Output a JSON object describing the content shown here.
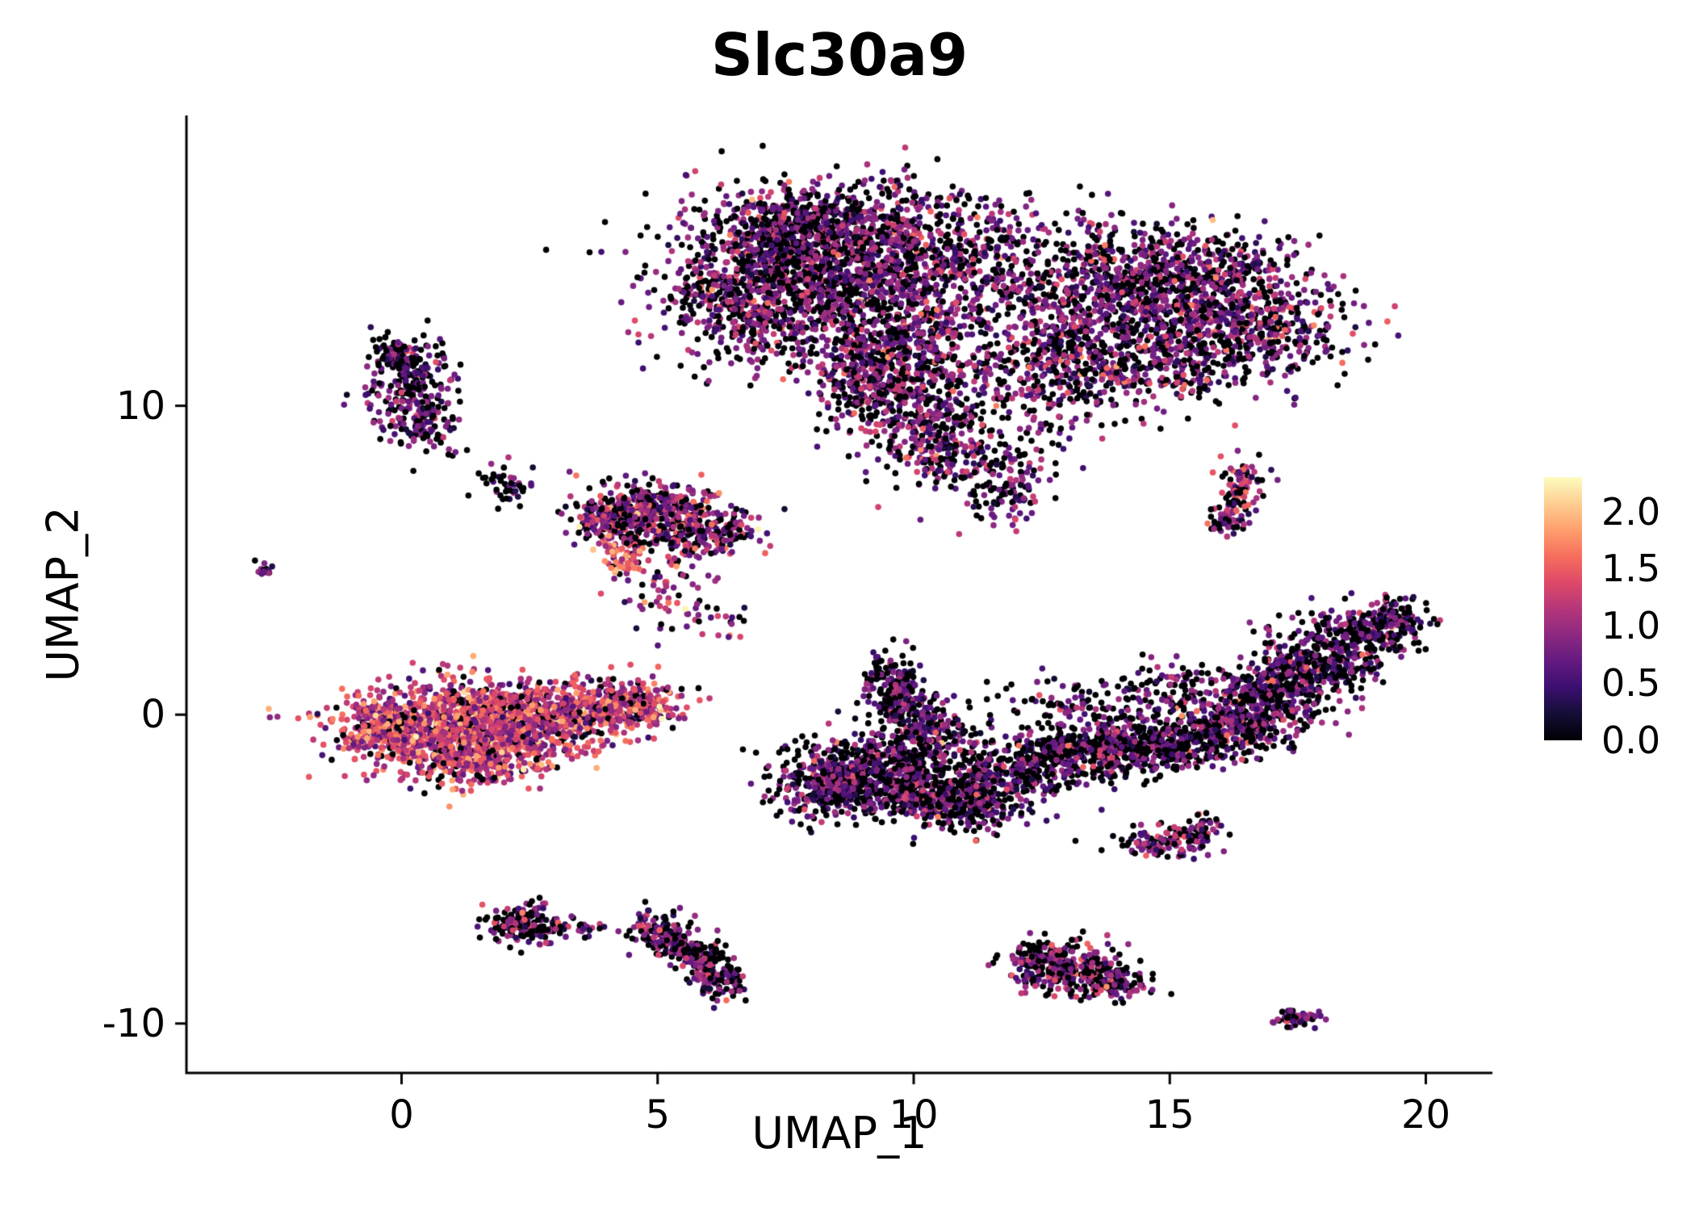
{
  "chart_data": {
    "type": "scatter",
    "title": "Slc30a9",
    "xlabel": "UMAP_1",
    "ylabel": "UMAP_2",
    "grid": false,
    "x_axis": {
      "range": [
        -4.2,
        21.3
      ],
      "ticks": [
        0,
        5,
        10,
        15,
        20
      ],
      "tick_labels": [
        "0",
        "5",
        "10",
        "15",
        "20"
      ]
    },
    "y_axis": {
      "range": [
        -11.6,
        19.4
      ],
      "ticks": [
        -10,
        0,
        10
      ],
      "tick_labels": [
        "-10",
        "0",
        "10"
      ]
    },
    "legend": {
      "position": "right",
      "range": [
        0,
        2.3
      ],
      "tick_values": [
        0,
        0.5,
        1,
        1.5,
        2
      ],
      "tick_labels": [
        "0.0",
        "0.5",
        "1.0",
        "1.5",
        "2.0"
      ]
    },
    "colormap": {
      "name": "magma",
      "stops": [
        [
          0.0,
          "#000004"
        ],
        [
          0.1,
          "#140e36"
        ],
        [
          0.2,
          "#3b0f70"
        ],
        [
          0.3,
          "#641a80"
        ],
        [
          0.4,
          "#8c2981"
        ],
        [
          0.5,
          "#b5367a"
        ],
        [
          0.6,
          "#de4968"
        ],
        [
          0.7,
          "#f66e5c"
        ],
        [
          0.8,
          "#fe9f6d"
        ],
        [
          0.9,
          "#fece91"
        ],
        [
          1.0,
          "#fcfdbf"
        ]
      ]
    },
    "point_radius": 3.8,
    "seed": 12345,
    "clusters": [
      {
        "name": "top-large-cluster",
        "expr": {
          "p0": 0.38,
          "mean": 0.85,
          "sd": 0.35
        },
        "blobs": [
          [
            8.2,
            14.6,
            1.5,
            1.2,
            1400
          ],
          [
            6.9,
            13.2,
            0.8,
            0.9,
            350
          ],
          [
            9.6,
            12.3,
            1.0,
            1.1,
            450
          ],
          [
            10.6,
            14.9,
            1.1,
            0.9,
            300
          ],
          [
            9.0,
            16.2,
            1.2,
            0.5,
            200
          ],
          [
            7.2,
            15.6,
            0.7,
            0.5,
            150
          ],
          [
            9.9,
            10.0,
            0.7,
            1.0,
            300
          ],
          [
            9.2,
            11.0,
            0.6,
            0.7,
            200
          ],
          [
            10.6,
            8.6,
            0.5,
            0.7,
            150
          ],
          [
            11.8,
            7.4,
            0.4,
            0.8,
            130
          ],
          [
            12.4,
            10.6,
            1.0,
            1.1,
            180
          ],
          [
            13.8,
            13.9,
            1.2,
            1.0,
            650
          ],
          [
            15.7,
            13.1,
            1.1,
            0.9,
            480
          ],
          [
            16.9,
            12.3,
            0.8,
            0.7,
            240
          ],
          [
            13.1,
            11.6,
            0.9,
            0.8,
            280
          ],
          [
            14.9,
            11.2,
            0.9,
            0.7,
            230
          ],
          [
            15.9,
            14.6,
            0.9,
            0.5,
            180
          ]
        ]
      },
      {
        "name": "upper-left-cluster",
        "expr": {
          "p0": 0.42,
          "mean": 0.75,
          "sd": 0.3
        },
        "blobs": [
          [
            0.15,
            10.6,
            0.42,
            0.8,
            240
          ],
          [
            0.45,
            9.4,
            0.28,
            0.4,
            70
          ],
          [
            -0.1,
            11.6,
            0.3,
            0.3,
            60
          ]
        ]
      },
      {
        "name": "far-left-tiny-cluster",
        "expr": {
          "p0": 0.35,
          "mean": 0.8,
          "sd": 0.3
        },
        "blobs": [
          [
            -2.65,
            4.7,
            0.1,
            0.15,
            14
          ]
        ]
      },
      {
        "name": "small-sparse-cluster",
        "expr": {
          "p0": 0.65,
          "mean": 0.6,
          "sd": 0.25
        },
        "blobs": [
          [
            2.05,
            7.5,
            0.28,
            0.28,
            45
          ]
        ]
      },
      {
        "name": "mid-left-cluster",
        "expr": {
          "p0": 0.3,
          "mean": 1.0,
          "sd": 0.4
        },
        "blobs": [
          [
            4.8,
            6.6,
            0.65,
            0.45,
            420
          ],
          [
            5.9,
            5.9,
            0.55,
            0.4,
            220
          ],
          [
            4.1,
            6.1,
            0.3,
            0.35,
            100
          ],
          [
            5.2,
            4.0,
            0.45,
            0.6,
            60
          ],
          [
            6.2,
            3.1,
            0.25,
            0.35,
            20
          ]
        ]
      },
      {
        "name": "mid-left-bright-spot",
        "expr": {
          "p0": 0.1,
          "mean": 1.5,
          "sd": 0.35
        },
        "blobs": [
          [
            4.35,
            5.05,
            0.2,
            0.3,
            60
          ]
        ]
      },
      {
        "name": "left-warm-cluster",
        "expr": {
          "p0": 0.12,
          "mean": 1.25,
          "sd": 0.4
        },
        "blobs": [
          [
            0.7,
            -0.4,
            1.0,
            0.7,
            850
          ],
          [
            2.4,
            -0.15,
            0.95,
            0.55,
            650
          ],
          [
            3.9,
            0.25,
            0.75,
            0.4,
            320
          ],
          [
            1.5,
            -1.4,
            0.8,
            0.5,
            280
          ],
          [
            -0.35,
            -0.5,
            0.35,
            0.45,
            140
          ],
          [
            4.7,
            0.45,
            0.35,
            0.3,
            90
          ]
        ]
      },
      {
        "name": "center-right-cluster",
        "expr": {
          "p0": 0.45,
          "mean": 0.75,
          "sd": 0.35
        },
        "blobs": [
          [
            9.6,
            1.1,
            0.3,
            0.5,
            110
          ],
          [
            9.9,
            0.2,
            0.35,
            0.5,
            130
          ],
          [
            10.3,
            -0.7,
            0.5,
            0.5,
            180
          ],
          [
            9.0,
            -1.8,
            0.75,
            0.55,
            400
          ],
          [
            8.3,
            -2.4,
            0.5,
            0.45,
            220
          ],
          [
            10.1,
            -2.4,
            0.65,
            0.5,
            320
          ],
          [
            11.0,
            -2.9,
            0.55,
            0.45,
            250
          ],
          [
            11.9,
            -1.9,
            0.65,
            0.45,
            230
          ],
          [
            12.9,
            -1.3,
            0.75,
            0.45,
            270
          ],
          [
            14.1,
            -1.1,
            0.75,
            0.45,
            270
          ],
          [
            15.3,
            -0.8,
            0.75,
            0.45,
            260
          ],
          [
            16.3,
            -0.3,
            0.65,
            0.45,
            230
          ],
          [
            17.0,
            0.7,
            0.6,
            0.55,
            260
          ],
          [
            17.9,
            1.7,
            0.6,
            0.55,
            300
          ],
          [
            18.8,
            2.7,
            0.55,
            0.4,
            220
          ],
          [
            19.4,
            3.2,
            0.3,
            0.25,
            70
          ],
          [
            13.6,
            0.3,
            1.1,
            0.5,
            130
          ],
          [
            15.5,
            0.9,
            0.8,
            0.4,
            100
          ]
        ]
      },
      {
        "name": "right-small-vertical-cluster",
        "expr": {
          "p0": 0.3,
          "mean": 1.0,
          "sd": 0.35
        },
        "blobs": [
          [
            16.35,
            7.3,
            0.22,
            0.5,
            90
          ],
          [
            16.1,
            6.3,
            0.18,
            0.3,
            45
          ]
        ]
      },
      {
        "name": "mid-right-small-cluster",
        "expr": {
          "p0": 0.35,
          "mean": 0.9,
          "sd": 0.35
        },
        "blobs": [
          [
            14.9,
            -4.15,
            0.45,
            0.25,
            110
          ],
          [
            15.6,
            -3.7,
            0.28,
            0.2,
            50
          ]
        ]
      },
      {
        "name": "bottom-left-arc-cluster",
        "expr": {
          "p0": 0.4,
          "mean": 0.85,
          "sd": 0.35
        },
        "blobs": [
          [
            2.45,
            -6.8,
            0.38,
            0.33,
            170
          ],
          [
            3.5,
            -6.9,
            0.3,
            0.2,
            25
          ],
          [
            4.9,
            -6.9,
            0.28,
            0.25,
            70
          ],
          [
            5.4,
            -7.4,
            0.28,
            0.3,
            85
          ],
          [
            5.9,
            -8.0,
            0.28,
            0.33,
            100
          ],
          [
            6.2,
            -8.7,
            0.22,
            0.3,
            80
          ]
        ]
      },
      {
        "name": "bottom-center-cluster",
        "expr": {
          "p0": 0.4,
          "mean": 0.9,
          "sd": 0.35
        },
        "blobs": [
          [
            13.0,
            -8.2,
            0.55,
            0.42,
            260
          ],
          [
            13.8,
            -8.7,
            0.35,
            0.28,
            110
          ],
          [
            12.4,
            -7.8,
            0.3,
            0.28,
            80
          ]
        ]
      },
      {
        "name": "bottom-right-tiny-cluster",
        "expr": {
          "p0": 0.4,
          "mean": 0.8,
          "sd": 0.3
        },
        "blobs": [
          [
            17.55,
            -9.8,
            0.28,
            0.12,
            55
          ]
        ]
      }
    ]
  }
}
